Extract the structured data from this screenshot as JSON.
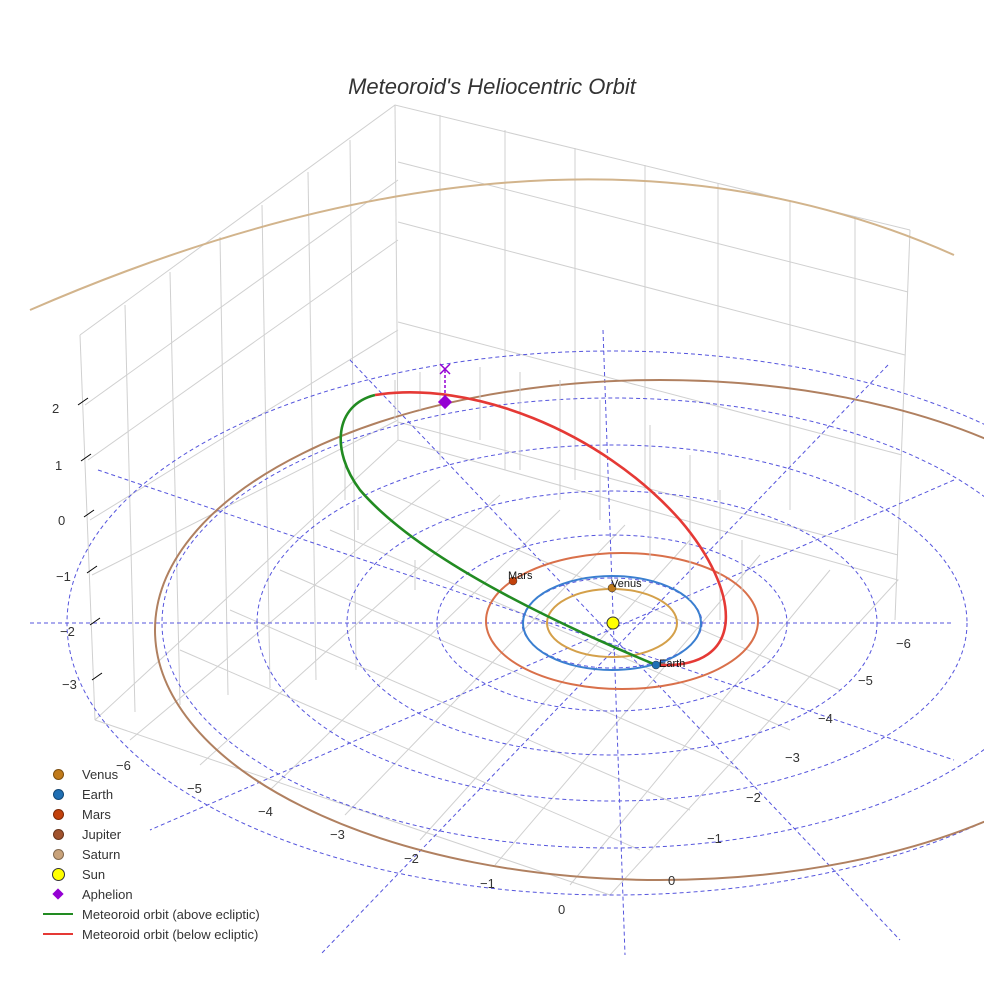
{
  "chart_data": {
    "type": "scatter3d",
    "title": "Meteoroid's Heliocentric Orbit",
    "axes": {
      "x": {
        "ticks": [
          -6,
          -5,
          -4,
          -3,
          -2,
          -1,
          0
        ]
      },
      "y": {
        "ticks": [
          -6,
          -5,
          -4,
          -3,
          -2,
          -1,
          0
        ]
      },
      "z": {
        "ticks": [
          -3,
          -2,
          -1,
          0,
          1,
          2
        ]
      }
    },
    "grid": true,
    "legend_position": "bottom-left",
    "series": [
      {
        "name": "Venus",
        "type": "marker",
        "color": "#c07a1a",
        "orbit_color": "#d4a04a",
        "orbit_radius_au": 0.72
      },
      {
        "name": "Earth",
        "type": "marker",
        "color": "#1f6fb4",
        "orbit_color": "#3a7fd0",
        "orbit_radius_au": 1.0
      },
      {
        "name": "Mars",
        "type": "marker",
        "color": "#c2410c",
        "orbit_color": "#d9704a",
        "orbit_radius_au": 1.52
      },
      {
        "name": "Jupiter",
        "type": "marker",
        "color": "#a0522d",
        "orbit_color": "#b08060",
        "orbit_radius_au": 5.2
      },
      {
        "name": "Saturn",
        "type": "marker",
        "color": "#c8a27a",
        "orbit_color": "#d2b48c",
        "orbit_radius_au": 9.54
      },
      {
        "name": "Sun",
        "type": "marker",
        "color": "#ffff00"
      },
      {
        "name": "Aphelion",
        "type": "marker",
        "color": "#9400d3"
      },
      {
        "name": "Meteoroid orbit (above ecliptic)",
        "type": "line",
        "color": "#228b22"
      },
      {
        "name": "Meteoroid orbit (below ecliptic)",
        "type": "line",
        "color": "#e53935"
      }
    ],
    "annotations": [
      "Mars",
      "Venus",
      "Earth"
    ]
  },
  "title": "Meteoroid's Heliocentric Orbit",
  "labels": {
    "mars": "Mars",
    "venus": "Venus",
    "earth": "Earth"
  },
  "ticks": {
    "z": [
      "2",
      "1",
      "0",
      "−1",
      "−2",
      "−3"
    ],
    "x": [
      "−6",
      "−5",
      "−4",
      "−3",
      "−2",
      "−1",
      "0"
    ],
    "y": [
      "−6",
      "−5",
      "−4",
      "−3",
      "−2",
      "−1",
      "0"
    ]
  },
  "legend": [
    {
      "label": "Venus",
      "kind": "dot",
      "color": "#c07a1a"
    },
    {
      "label": "Earth",
      "kind": "dot",
      "color": "#1f6fb4"
    },
    {
      "label": "Mars",
      "kind": "dot",
      "color": "#c2410c"
    },
    {
      "label": "Jupiter",
      "kind": "dot",
      "color": "#a0522d"
    },
    {
      "label": "Saturn",
      "kind": "dot",
      "color": "#c8a27a"
    },
    {
      "label": "Sun",
      "kind": "bigdot",
      "color": "#ffff00"
    },
    {
      "label": "Aphelion",
      "kind": "diamond",
      "color": "#9400d3"
    },
    {
      "label": "Meteoroid orbit (above ecliptic)",
      "kind": "line",
      "color": "#228b22"
    },
    {
      "label": "Meteoroid orbit (below ecliptic)",
      "kind": "line",
      "color": "#e53935"
    }
  ]
}
